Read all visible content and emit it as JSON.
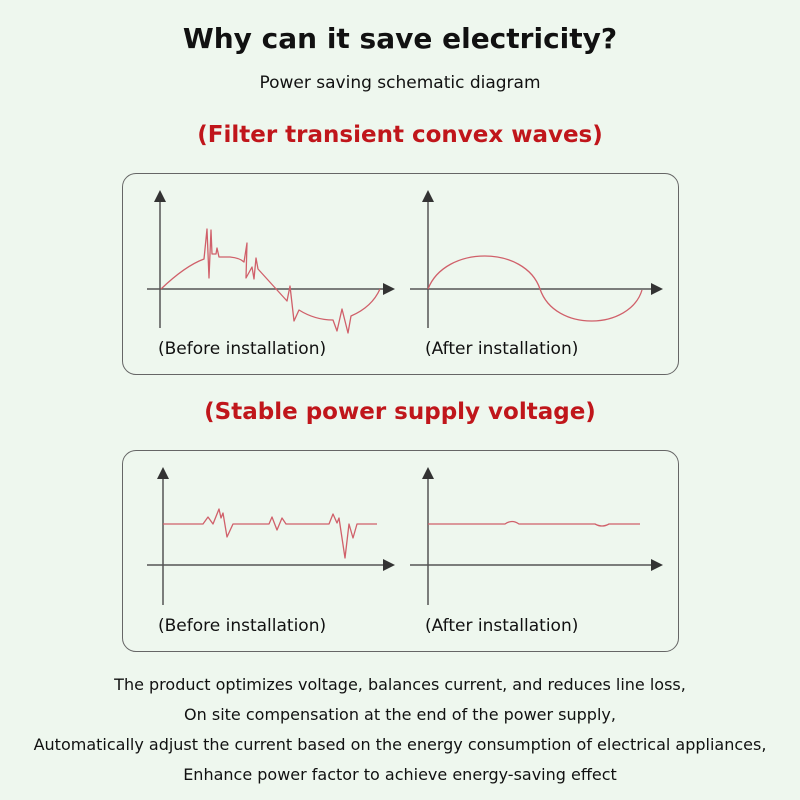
{
  "title": "Why can it save electricity?",
  "subtitle": "Power saving schematic diagram",
  "section1": {
    "heading": "(Filter transient convex waves)",
    "before_label": "(Before installation)",
    "after_label": "(After installation)"
  },
  "section2": {
    "heading": "(Stable power supply voltage)",
    "before_label": "(Before installation)",
    "after_label": "(After installation)"
  },
  "description": [
    "The product optimizes voltage, balances current, and reduces line loss,",
    "On site compensation at the end of the power supply,",
    "Automatically adjust the current based on the energy consumption of electrical appliances,",
    "Enhance power factor to achieve energy-saving effect"
  ],
  "colors": {
    "heading": "#c0161b",
    "wave": "#d0606a",
    "background": "#eef7ee"
  }
}
